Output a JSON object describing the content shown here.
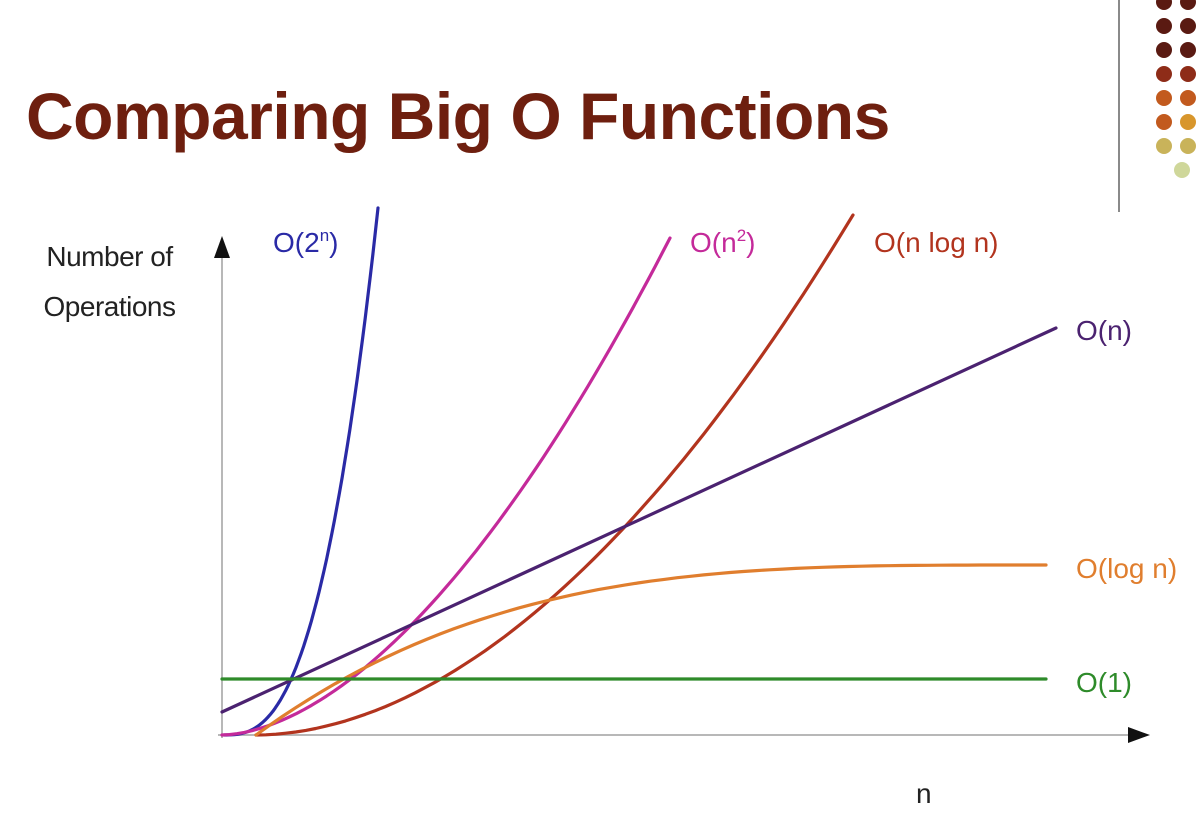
{
  "slide": {
    "title": "Comparing Big O Functions",
    "decoration_colors": [
      "#5a1a12",
      "#8e2c18",
      "#c25a1e",
      "#d8962c",
      "#c9b35a",
      "#cfd79a"
    ]
  },
  "chart_data": {
    "type": "line",
    "title": "Comparing Big O Functions",
    "xlabel": "n",
    "ylabel": "Number of Operations",
    "x_ticks": [],
    "y_ticks": [],
    "grid": false,
    "axis_arrows": true,
    "x": [
      0,
      1,
      2,
      3,
      4,
      5,
      6,
      7,
      8,
      9,
      10
    ],
    "series": [
      {
        "name": "O(2ⁿ)",
        "display": {
          "base": "O(2",
          "sup": "n",
          "tail": ")"
        },
        "color": "#2a2aa6"
      },
      {
        "name": "O(n²)",
        "display": {
          "base": "O(n",
          "sup": "2",
          "tail": ")"
        },
        "color": "#c42a9a"
      },
      {
        "name": "O(n log n)",
        "display": {
          "base": "O(n log n)",
          "sup": "",
          "tail": ""
        },
        "color": "#b2341e"
      },
      {
        "name": "O(n)",
        "display": {
          "base": "O(n)",
          "sup": "",
          "tail": ""
        },
        "color": "#4b2270"
      },
      {
        "name": "O(log n)",
        "display": {
          "base": "O(log n)",
          "sup": "",
          "tail": ""
        },
        "color": "#e07e2e"
      },
      {
        "name": "O(1)",
        "display": {
          "base": "O(1)",
          "sup": "",
          "tail": ""
        },
        "color": "#2e8b2a"
      }
    ]
  }
}
